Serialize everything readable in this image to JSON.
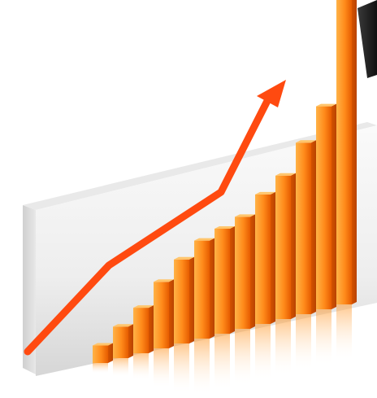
{
  "scene": {
    "subject": "growth-chart-illustration",
    "bar_count": 13,
    "bar_levels": [
      0.05,
      0.09,
      0.13,
      0.19,
      0.24,
      0.28,
      0.3,
      0.32,
      0.37,
      0.41,
      0.49,
      0.58,
      1.0
    ],
    "trend_points": [
      0.0,
      0.34,
      0.56,
      1.0
    ],
    "colors": {
      "bar_light": "#ffb347",
      "bar_mid": "#ff8a1a",
      "bar_dark": "#e65c00",
      "bar_top": "#ffc56b",
      "arrow": "#ff4a10",
      "wall_light": "#f4f4f4",
      "wall_shade": "#d9d9d9",
      "backdrop": "#1c1c1c"
    },
    "icons": [
      "trend-arrow-icon"
    ]
  }
}
